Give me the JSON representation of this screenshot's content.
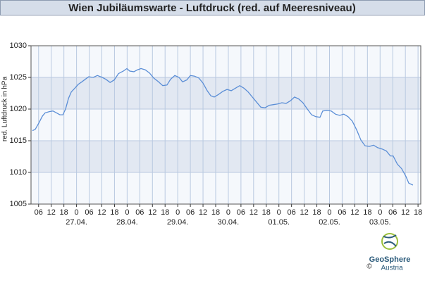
{
  "chart_data": {
    "type": "line",
    "title": "Wien Jubiläumswarte - Luftdruck (red. auf Meeresniveau)",
    "y_label": "red. Luftdruck in hPa",
    "x": [
      3.1,
      4.4,
      6.1,
      7.8,
      9.1,
      11.1,
      12.8,
      14.5,
      16.1,
      17.5,
      18.8,
      20.2,
      21.5,
      23.2,
      24.8,
      26.5,
      28.5,
      29.8,
      31.9,
      33.9,
      36.2,
      37.9,
      39.9,
      41.9,
      43.9,
      46.2,
      47.9,
      49.2,
      51.2,
      52.9,
      54.6,
      56.6,
      58.6,
      60.6,
      62.9,
      64.9,
      66.9,
      68.6,
      70.6,
      72.6,
      74.3,
      76.3,
      78.0,
      80.0,
      82.0,
      84.0,
      86.0,
      87.7,
      89.3,
      91.3,
      93.4,
      95.4,
      97.4,
      99.4,
      101.4,
      103.4,
      105.4,
      107.4,
      109.4,
      111.4,
      113.4,
      115.4,
      117.4,
      119.4,
      121.4,
      123.4,
      125.4,
      127.4,
      129.4,
      131.4,
      133.5,
      135.5,
      137.5,
      139.5,
      140.8,
      142.8,
      144.8,
      146.8,
      148.8,
      150.8,
      152.8,
      154.8,
      156.9,
      158.9,
      160.9,
      162.9,
      164.9,
      166.9,
      168.9,
      170.9,
      172.9,
      174.2,
      176.2,
      178.2,
      180.2,
      181.6,
      183.6
    ],
    "series": [
      {
        "color": "#5b8ed6",
        "values": [
          1016.6,
          1016.8,
          1017.8,
          1018.9,
          1019.4,
          1019.6,
          1019.7,
          1019.4,
          1019.1,
          1019.1,
          1020.0,
          1021.7,
          1022.7,
          1023.3,
          1023.9,
          1024.3,
          1024.8,
          1025.1,
          1025.0,
          1025.3,
          1025.0,
          1024.7,
          1024.2,
          1024.6,
          1025.6,
          1026.0,
          1026.4,
          1026.0,
          1025.9,
          1026.2,
          1026.4,
          1026.2,
          1025.7,
          1024.9,
          1024.3,
          1023.7,
          1023.8,
          1024.7,
          1025.3,
          1025.0,
          1024.3,
          1024.6,
          1025.3,
          1025.2,
          1024.9,
          1024.1,
          1022.9,
          1022.1,
          1021.9,
          1022.3,
          1022.8,
          1023.1,
          1022.9,
          1023.3,
          1023.7,
          1023.3,
          1022.7,
          1021.9,
          1021.1,
          1020.3,
          1020.2,
          1020.6,
          1020.7,
          1020.8,
          1021.0,
          1020.9,
          1021.3,
          1021.9,
          1021.6,
          1021.0,
          1020.0,
          1019.1,
          1018.8,
          1018.7,
          1019.7,
          1019.8,
          1019.7,
          1019.2,
          1019.0,
          1019.2,
          1018.8,
          1018.1,
          1016.7,
          1015.1,
          1014.2,
          1014.1,
          1014.3,
          1013.9,
          1013.7,
          1013.4,
          1012.6,
          1012.6,
          1011.3,
          1010.6,
          1009.4,
          1008.3,
          1008.0
        ]
      }
    ],
    "xlim": [
      2.4,
      187.3
    ],
    "xticks": [
      {
        "value": 6,
        "label": "06"
      },
      {
        "value": 12,
        "label": "12"
      },
      {
        "value": 18,
        "label": "18"
      },
      {
        "value": 24,
        "label": "0"
      },
      {
        "value": 30,
        "label": "06"
      },
      {
        "value": 36,
        "label": "12"
      },
      {
        "value": 42,
        "label": "18"
      },
      {
        "value": 48,
        "label": "0"
      },
      {
        "value": 54,
        "label": "06"
      },
      {
        "value": 60,
        "label": "12"
      },
      {
        "value": 66,
        "label": "18"
      },
      {
        "value": 72,
        "label": "0"
      },
      {
        "value": 78,
        "label": "06"
      },
      {
        "value": 84,
        "label": "12"
      },
      {
        "value": 90,
        "label": "18"
      },
      {
        "value": 96,
        "label": "0"
      },
      {
        "value": 102,
        "label": "06"
      },
      {
        "value": 108,
        "label": "12"
      },
      {
        "value": 114,
        "label": "18"
      },
      {
        "value": 120,
        "label": "0"
      },
      {
        "value": 126,
        "label": "06"
      },
      {
        "value": 132,
        "label": "12"
      },
      {
        "value": 138,
        "label": "18"
      },
      {
        "value": 144,
        "label": "0"
      },
      {
        "value": 150,
        "label": "06"
      },
      {
        "value": 156,
        "label": "12"
      },
      {
        "value": 162,
        "label": "18"
      },
      {
        "value": 168,
        "label": "0"
      },
      {
        "value": 174,
        "label": "06"
      },
      {
        "value": 180,
        "label": "12"
      },
      {
        "value": 186,
        "label": "18"
      }
    ],
    "x_date_labels": [
      {
        "value": 24,
        "label": "27.04."
      },
      {
        "value": 48,
        "label": "28.04."
      },
      {
        "value": 72,
        "label": "29.04."
      },
      {
        "value": 96,
        "label": "30.04."
      },
      {
        "value": 120,
        "label": "01.05."
      },
      {
        "value": 144,
        "label": "02.05."
      },
      {
        "value": 168,
        "label": "03.05."
      }
    ],
    "ylim": [
      1005,
      1030
    ],
    "yticks": [
      1005,
      1010,
      1015,
      1020,
      1025,
      1030
    ],
    "grid": true
  },
  "logo": {
    "name": "GeoSphere",
    "sub": "Austria",
    "copyright": "©"
  }
}
